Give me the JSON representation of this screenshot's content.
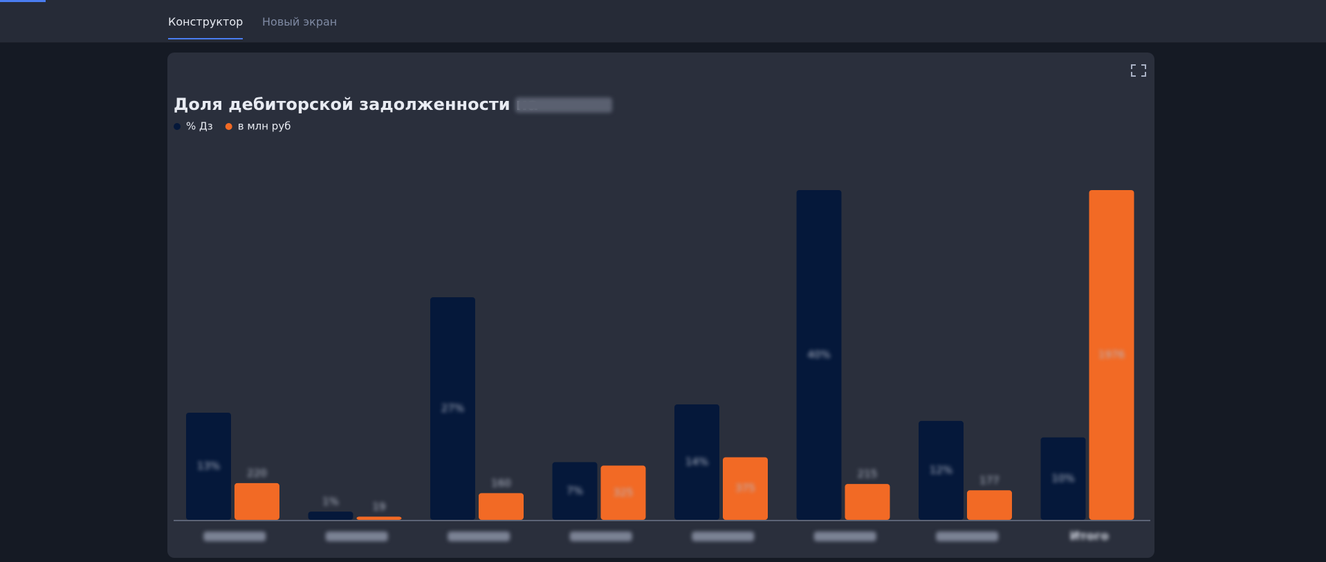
{
  "tabs": [
    "Конструктор",
    "Новый экран"
  ],
  "chart_data": {
    "type": "bar",
    "title": "Доля дебиторской задолженности на",
    "categories": [
      null,
      null,
      null,
      null,
      null,
      null,
      null,
      "Итого"
    ],
    "series": [
      {
        "name": "% Дз",
        "color": "#05183a",
        "values": [
          13,
          1,
          27,
          7,
          14,
          40,
          12,
          10
        ],
        "value_labels": [
          "13%",
          "1%",
          "27%",
          "7%",
          "14%",
          "40%",
          "12%",
          "10%"
        ]
      },
      {
        "name": "в млн руб",
        "color": "#f26a25",
        "axis": "y2",
        "values": [
          220,
          19,
          160,
          325,
          375,
          215,
          177,
          1976
        ]
      }
    ],
    "ylim": [
      0,
      40
    ],
    "y2lim": [
      0,
      1976
    ],
    "legend": "top-left"
  }
}
